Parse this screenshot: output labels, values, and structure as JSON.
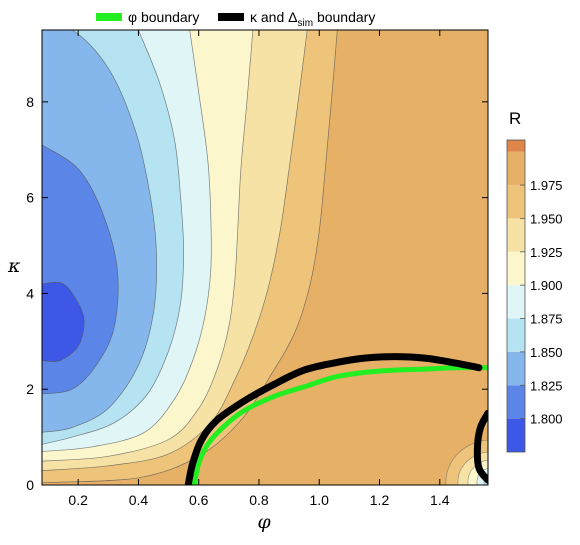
{
  "chart_data": {
    "type": "heatmap",
    "subtype": "filled contour plot",
    "xlabel": "φ",
    "ylabel": "κ",
    "xlim": [
      0.08,
      1.56
    ],
    "ylim": [
      0,
      9.5
    ],
    "x_ticks": [
      0.2,
      0.4,
      0.6,
      0.8,
      1.0,
      1.2,
      1.4
    ],
    "x_tick_labels": [
      "0.2",
      "0.4",
      "0.6",
      "0.8",
      "1.0",
      "1.2",
      "1.4"
    ],
    "y_ticks": [
      0,
      2,
      4,
      6,
      8
    ],
    "y_tick_labels": [
      "0",
      "2",
      "4",
      "6",
      "8"
    ],
    "colorbar": {
      "title": "R",
      "levels": [
        1.8,
        1.825,
        1.85,
        1.875,
        1.9,
        1.925,
        1.95,
        1.975
      ],
      "tick_labels": [
        "1.800",
        "1.825",
        "1.850",
        "1.875",
        "1.900",
        "1.925",
        "1.950",
        "1.975"
      ],
      "band_colors": [
        "#3d57e6",
        "#5b86e8",
        "#86b7ec",
        "#b5e3f2",
        "#e0f5f6",
        "#fbf6cc",
        "#f6e2a4",
        "#edc479",
        "#e6b066",
        "#df8549"
      ]
    },
    "legend": {
      "placement": "top",
      "entries": [
        {
          "label": "φ boundary",
          "color": "#22ee22"
        },
        {
          "label_main": "κ and Δ",
          "label_sub": "sim",
          "label_tail": " boundary",
          "color": "#000000"
        }
      ]
    },
    "boundaries": [
      {
        "name": "φ boundary",
        "color": "#22ee22",
        "points": [
          [
            0.585,
            0.0
          ],
          [
            0.6,
            0.45
          ],
          [
            0.63,
            0.85
          ],
          [
            0.68,
            1.2
          ],
          [
            0.75,
            1.55
          ],
          [
            0.85,
            1.85
          ],
          [
            0.95,
            2.05
          ],
          [
            1.05,
            2.25
          ],
          [
            1.15,
            2.35
          ],
          [
            1.25,
            2.4
          ],
          [
            1.35,
            2.42
          ],
          [
            1.45,
            2.45
          ],
          [
            1.56,
            2.45
          ]
        ]
      },
      {
        "name": "κ and Δsim boundary",
        "color": "#000000",
        "points": [
          [
            0.565,
            0.0
          ],
          [
            0.58,
            0.45
          ],
          [
            0.61,
            0.95
          ],
          [
            0.66,
            1.35
          ],
          [
            0.75,
            1.75
          ],
          [
            0.85,
            2.1
          ],
          [
            0.95,
            2.4
          ],
          [
            1.05,
            2.55
          ],
          [
            1.15,
            2.65
          ],
          [
            1.25,
            2.68
          ],
          [
            1.35,
            2.65
          ],
          [
            1.45,
            2.55
          ],
          [
            1.53,
            2.45
          ]
        ],
        "secondary_points": [
          [
            1.56,
            1.5
          ],
          [
            1.535,
            1.2
          ],
          [
            1.525,
            0.8
          ],
          [
            1.53,
            0.35
          ],
          [
            1.56,
            0.1
          ]
        ]
      }
    ],
    "contours": [
      {
        "level": 1.8,
        "points": [
          [
            0.08,
            4.2
          ],
          [
            0.15,
            4.2
          ],
          [
            0.2,
            3.8
          ],
          [
            0.22,
            3.4
          ],
          [
            0.2,
            2.9
          ],
          [
            0.14,
            2.6
          ],
          [
            0.08,
            2.6
          ]
        ]
      },
      {
        "level": 1.825,
        "points": [
          [
            0.08,
            7.1
          ],
          [
            0.2,
            6.6
          ],
          [
            0.28,
            5.7
          ],
          [
            0.33,
            4.5
          ],
          [
            0.32,
            3.3
          ],
          [
            0.26,
            2.5
          ],
          [
            0.18,
            2.0
          ],
          [
            0.08,
            1.9
          ]
        ]
      },
      {
        "level": 1.85,
        "points": [
          [
            0.08,
            9.5
          ],
          [
            0.18,
            9.5
          ],
          [
            0.3,
            8.7
          ],
          [
            0.39,
            7.4
          ],
          [
            0.44,
            6.0
          ],
          [
            0.46,
            4.8
          ],
          [
            0.45,
            3.6
          ],
          [
            0.4,
            2.5
          ],
          [
            0.3,
            1.6
          ],
          [
            0.18,
            1.2
          ],
          [
            0.08,
            1.1
          ]
        ]
      },
      {
        "level": 1.875,
        "points": [
          [
            0.4,
            9.5
          ],
          [
            0.47,
            8.4
          ],
          [
            0.52,
            7.2
          ],
          [
            0.54,
            6.0
          ],
          [
            0.55,
            4.9
          ],
          [
            0.54,
            3.8
          ],
          [
            0.5,
            2.8
          ],
          [
            0.43,
            1.9
          ],
          [
            0.32,
            1.3
          ],
          [
            0.18,
            1.0
          ],
          [
            0.08,
            0.85
          ]
        ]
      },
      {
        "level": 1.9,
        "points": [
          [
            0.57,
            9.5
          ],
          [
            0.6,
            8.2
          ],
          [
            0.63,
            6.8
          ],
          [
            0.64,
            5.6
          ],
          [
            0.64,
            4.5
          ],
          [
            0.62,
            3.5
          ],
          [
            0.58,
            2.6
          ],
          [
            0.52,
            1.8
          ],
          [
            0.42,
            1.1
          ],
          [
            0.25,
            0.8
          ],
          [
            0.08,
            0.7
          ]
        ]
      },
      {
        "level": 1.925,
        "points": [
          [
            0.78,
            9.5
          ],
          [
            0.76,
            8.0
          ],
          [
            0.74,
            6.6
          ],
          [
            0.73,
            5.4
          ],
          [
            0.72,
            4.3
          ],
          [
            0.7,
            3.3
          ],
          [
            0.66,
            2.4
          ],
          [
            0.6,
            1.6
          ],
          [
            0.5,
            0.95
          ],
          [
            0.3,
            0.6
          ],
          [
            0.08,
            0.5
          ]
        ]
      },
      {
        "level": 1.95,
        "points": [
          [
            0.96,
            9.5
          ],
          [
            0.93,
            8.0
          ],
          [
            0.9,
            6.6
          ],
          [
            0.87,
            5.3
          ],
          [
            0.83,
            4.1
          ],
          [
            0.78,
            3.1
          ],
          [
            0.72,
            2.2
          ],
          [
            0.64,
            1.3
          ],
          [
            0.5,
            0.65
          ],
          [
            0.3,
            0.4
          ],
          [
            0.08,
            0.3
          ]
        ]
      },
      {
        "level": 1.975,
        "points": [
          [
            1.06,
            9.5
          ],
          [
            1.04,
            8.0
          ],
          [
            1.02,
            6.6
          ],
          [
            1.0,
            5.3
          ],
          [
            0.97,
            4.2
          ],
          [
            0.92,
            3.2
          ],
          [
            0.84,
            2.3
          ],
          [
            0.74,
            1.35
          ],
          [
            0.6,
            0.6
          ],
          [
            0.4,
            0.15
          ],
          [
            0.08,
            0.05
          ]
        ]
      }
    ],
    "annotations": [
      {
        "region": "secondary minimum near bottom-right corner",
        "x": 1.5,
        "y": 0.4
      }
    ],
    "grid": false
  }
}
